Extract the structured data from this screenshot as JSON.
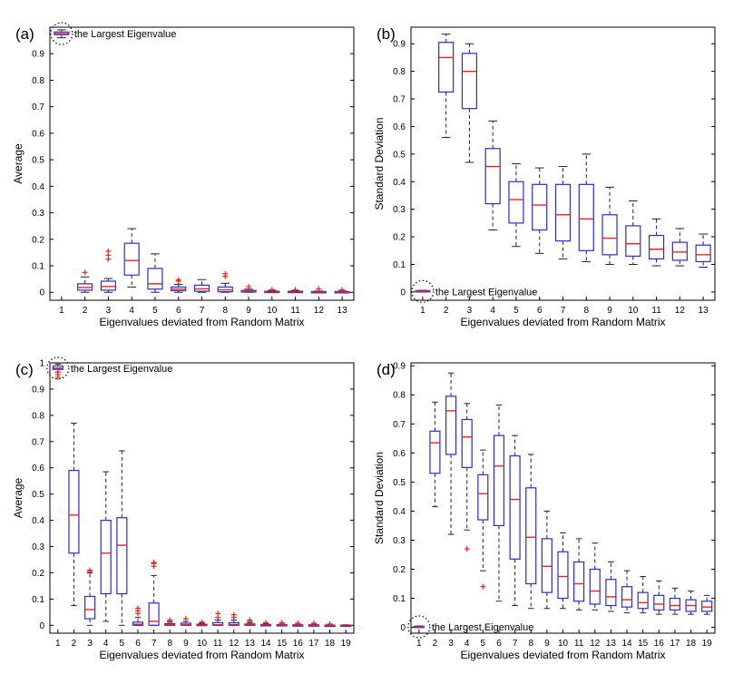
{
  "colors": {
    "box": "#2b2bd6",
    "median": "#e8231d",
    "outlier": "#e8231d",
    "whisker": "#222222",
    "axis": "#000000"
  },
  "chart_data": [
    {
      "panel": "(a)",
      "type": "box",
      "xlabel": "Eigenvalues deviated from Random Matrix",
      "ylabel": "Average",
      "ylim": [
        -0.03,
        1.0
      ],
      "yticks": [
        "0",
        "0.1",
        "0.2",
        "0.3",
        "0.4",
        "0.5",
        "0.6",
        "0.7",
        "0.8",
        "0.9"
      ],
      "annotation": "the Largest Eigenvalue",
      "categories": [
        "1",
        "2",
        "3",
        "4",
        "5",
        "6",
        "7",
        "8",
        "9",
        "10",
        "11",
        "12",
        "13"
      ],
      "boxes": [
        {
          "q1": 0.972,
          "median": 0.976,
          "q3": 0.982,
          "lo": 0.96,
          "hi": 0.99,
          "outliers": []
        },
        {
          "q1": 0.008,
          "median": 0.018,
          "q3": 0.032,
          "lo": 0.0,
          "hi": 0.058,
          "outliers": [
            0.075
          ]
        },
        {
          "q1": 0.008,
          "median": 0.022,
          "q3": 0.042,
          "lo": 0.0,
          "hi": 0.052,
          "outliers": [
            0.125,
            0.14,
            0.155
          ]
        },
        {
          "q1": 0.065,
          "median": 0.12,
          "q3": 0.185,
          "lo": 0.02,
          "hi": 0.24,
          "outliers": []
        },
        {
          "q1": 0.012,
          "median": 0.032,
          "q3": 0.09,
          "lo": 0.0,
          "hi": 0.145,
          "outliers": []
        },
        {
          "q1": 0.006,
          "median": 0.012,
          "q3": 0.02,
          "lo": 0.0,
          "hi": 0.03,
          "outliers": [
            0.042,
            0.047
          ]
        },
        {
          "q1": 0.004,
          "median": 0.013,
          "q3": 0.027,
          "lo": 0.0,
          "hi": 0.048,
          "outliers": []
        },
        {
          "q1": 0.002,
          "median": 0.009,
          "q3": 0.02,
          "lo": 0.0,
          "hi": 0.034,
          "outliers": [
            0.06,
            0.07
          ]
        },
        {
          "q1": 0.001,
          "median": 0.003,
          "q3": 0.007,
          "lo": 0.0,
          "hi": 0.012,
          "outliers": [
            0.021
          ]
        },
        {
          "q1": 0.0,
          "median": 0.002,
          "q3": 0.004,
          "lo": 0.0,
          "hi": 0.007,
          "outliers": [
            0.01
          ]
        },
        {
          "q1": 0.0,
          "median": 0.002,
          "q3": 0.004,
          "lo": 0.0,
          "hi": 0.006,
          "outliers": [
            0.01
          ]
        },
        {
          "q1": 0.0,
          "median": 0.001,
          "q3": 0.003,
          "lo": 0.0,
          "hi": 0.005,
          "outliers": [
            0.013
          ]
        },
        {
          "q1": 0.0,
          "median": 0.001,
          "q3": 0.003,
          "lo": 0.0,
          "hi": 0.005,
          "outliers": [
            0.009
          ]
        }
      ]
    },
    {
      "panel": "(b)",
      "type": "box",
      "xlabel": "Eigenvalues deviated from Random Matrix",
      "ylabel": "Standard Deviation",
      "ylim": [
        -0.03,
        0.96
      ],
      "yticks": [
        "0",
        "0.1",
        "0.2",
        "0.3",
        "0.4",
        "0.5",
        "0.6",
        "0.7",
        "0.8",
        "0.9"
      ],
      "annotation": "the Largest Eigenvalue",
      "categories": [
        "1",
        "2",
        "3",
        "4",
        "5",
        "6",
        "7",
        "8",
        "9",
        "10",
        "11",
        "12",
        "13"
      ],
      "boxes": [
        {
          "q1": 0.0,
          "median": 0.002,
          "q3": 0.005,
          "lo": 0.0,
          "hi": 0.006,
          "outliers": []
        },
        {
          "q1": 0.725,
          "median": 0.85,
          "q3": 0.905,
          "lo": 0.56,
          "hi": 0.935,
          "outliers": []
        },
        {
          "q1": 0.665,
          "median": 0.8,
          "q3": 0.865,
          "lo": 0.47,
          "hi": 0.9,
          "outliers": []
        },
        {
          "q1": 0.32,
          "median": 0.455,
          "q3": 0.52,
          "lo": 0.225,
          "hi": 0.62,
          "outliers": []
        },
        {
          "q1": 0.25,
          "median": 0.335,
          "q3": 0.4,
          "lo": 0.165,
          "hi": 0.465,
          "outliers": []
        },
        {
          "q1": 0.225,
          "median": 0.315,
          "q3": 0.39,
          "lo": 0.14,
          "hi": 0.45,
          "outliers": []
        },
        {
          "q1": 0.185,
          "median": 0.28,
          "q3": 0.39,
          "lo": 0.12,
          "hi": 0.455,
          "outliers": []
        },
        {
          "q1": 0.15,
          "median": 0.265,
          "q3": 0.39,
          "lo": 0.11,
          "hi": 0.5,
          "outliers": []
        },
        {
          "q1": 0.135,
          "median": 0.195,
          "q3": 0.28,
          "lo": 0.1,
          "hi": 0.38,
          "outliers": []
        },
        {
          "q1": 0.13,
          "median": 0.175,
          "q3": 0.24,
          "lo": 0.1,
          "hi": 0.33,
          "outliers": []
        },
        {
          "q1": 0.12,
          "median": 0.155,
          "q3": 0.205,
          "lo": 0.095,
          "hi": 0.265,
          "outliers": []
        },
        {
          "q1": 0.115,
          "median": 0.145,
          "q3": 0.18,
          "lo": 0.095,
          "hi": 0.23,
          "outliers": []
        },
        {
          "q1": 0.11,
          "median": 0.135,
          "q3": 0.17,
          "lo": 0.09,
          "hi": 0.21,
          "outliers": []
        }
      ]
    },
    {
      "panel": "(c)",
      "type": "box",
      "xlabel": "Eigenvalues deviated from Random Matrix",
      "ylabel": "Average",
      "ylim": [
        -0.03,
        1.0
      ],
      "yticks": [
        "0",
        "0.1",
        "0.2",
        "0.3",
        "0.4",
        "0.5",
        "0.6",
        "0.7",
        "0.8",
        "0.9",
        "1"
      ],
      "annotation": "the Largest Eigenvalue",
      "categories": [
        "1",
        "2",
        "3",
        "4",
        "5",
        "6",
        "7",
        "8",
        "9",
        "10",
        "11",
        "12",
        "13",
        "14",
        "15",
        "16",
        "17",
        "18",
        "19"
      ],
      "boxes": [
        {
          "q1": 0.975,
          "median": 0.98,
          "q3": 0.988,
          "lo": 0.965,
          "hi": 0.995,
          "outliers": [
            0.945,
            0.955,
            0.965
          ]
        },
        {
          "q1": 0.275,
          "median": 0.42,
          "q3": 0.59,
          "lo": 0.075,
          "hi": 0.77,
          "outliers": []
        },
        {
          "q1": 0.025,
          "median": 0.06,
          "q3": 0.11,
          "lo": 0.0,
          "hi": 0.2,
          "outliers": [
            0.205,
            0.21
          ]
        },
        {
          "q1": 0.12,
          "median": 0.275,
          "q3": 0.4,
          "lo": 0.015,
          "hi": 0.585,
          "outliers": []
        },
        {
          "q1": 0.12,
          "median": 0.305,
          "q3": 0.41,
          "lo": 0.0,
          "hi": 0.665,
          "outliers": []
        },
        {
          "q1": 0.0,
          "median": 0.004,
          "q3": 0.012,
          "lo": 0.0,
          "hi": 0.03,
          "outliers": [
            0.045,
            0.055,
            0.065
          ]
        },
        {
          "q1": 0.0,
          "median": 0.015,
          "q3": 0.085,
          "lo": 0.0,
          "hi": 0.19,
          "outliers": [
            0.225,
            0.235,
            0.24
          ]
        },
        {
          "q1": 0.0,
          "median": 0.002,
          "q3": 0.006,
          "lo": 0.0,
          "hi": 0.012,
          "outliers": [
            0.015,
            0.02
          ]
        },
        {
          "q1": 0.0,
          "median": 0.002,
          "q3": 0.008,
          "lo": 0.0,
          "hi": 0.015,
          "outliers": [
            0.025
          ]
        },
        {
          "q1": 0.0,
          "median": 0.001,
          "q3": 0.004,
          "lo": 0.0,
          "hi": 0.008,
          "outliers": [
            0.012
          ]
        },
        {
          "q1": 0.0,
          "median": 0.002,
          "q3": 0.01,
          "lo": 0.0,
          "hi": 0.02,
          "outliers": [
            0.03,
            0.045
          ]
        },
        {
          "q1": 0.0,
          "median": 0.003,
          "q3": 0.01,
          "lo": 0.0,
          "hi": 0.02,
          "outliers": [
            0.03,
            0.04
          ]
        },
        {
          "q1": 0.0,
          "median": 0.002,
          "q3": 0.005,
          "lo": 0.0,
          "hi": 0.01,
          "outliers": [
            0.015,
            0.02
          ]
        },
        {
          "q1": 0.0,
          "median": 0.001,
          "q3": 0.003,
          "lo": 0.0,
          "hi": 0.006,
          "outliers": [
            0.01
          ]
        },
        {
          "q1": 0.0,
          "median": 0.001,
          "q3": 0.003,
          "lo": 0.0,
          "hi": 0.005,
          "outliers": [
            0.01
          ]
        },
        {
          "q1": 0.0,
          "median": 0.001,
          "q3": 0.002,
          "lo": 0.0,
          "hi": 0.004,
          "outliers": [
            0.008
          ]
        },
        {
          "q1": 0.0,
          "median": 0.001,
          "q3": 0.002,
          "lo": 0.0,
          "hi": 0.004,
          "outliers": [
            0.008
          ]
        },
        {
          "q1": 0.0,
          "median": 0.0,
          "q3": 0.001,
          "lo": 0.0,
          "hi": 0.003,
          "outliers": [
            0.005
          ]
        },
        {
          "q1": 0.0,
          "median": 0.0,
          "q3": 0.001,
          "lo": 0.0,
          "hi": 0.002,
          "outliers": []
        }
      ]
    },
    {
      "panel": "(d)",
      "type": "box",
      "xlabel": "Eigenvalues deviated from Random Matrix",
      "ylabel": "Standard Deviation",
      "ylim": [
        -0.02,
        0.91
      ],
      "yticks": [
        "0",
        "0.1",
        "0.2",
        "0.3",
        "0.4",
        "0.5",
        "0.6",
        "0.7",
        "0.8",
        "0.9"
      ],
      "annotation": "the Largest Eigenvalue",
      "categories": [
        "1",
        "2",
        "3",
        "4",
        "5",
        "6",
        "7",
        "8",
        "9",
        "10",
        "11",
        "12",
        "13",
        "14",
        "15",
        "16",
        "17",
        "18",
        "19"
      ],
      "boxes": [
        {
          "q1": 0.0,
          "median": 0.002,
          "q3": 0.004,
          "lo": 0.0,
          "hi": 0.005,
          "outliers": []
        },
        {
          "q1": 0.53,
          "median": 0.635,
          "q3": 0.675,
          "lo": 0.415,
          "hi": 0.775,
          "outliers": []
        },
        {
          "q1": 0.595,
          "median": 0.745,
          "q3": 0.795,
          "lo": 0.32,
          "hi": 0.875,
          "outliers": []
        },
        {
          "q1": 0.55,
          "median": 0.655,
          "q3": 0.715,
          "lo": 0.335,
          "hi": 0.77,
          "outliers": [
            0.27
          ]
        },
        {
          "q1": 0.37,
          "median": 0.46,
          "q3": 0.525,
          "lo": 0.195,
          "hi": 0.61,
          "outliers": [
            0.14
          ]
        },
        {
          "q1": 0.35,
          "median": 0.555,
          "q3": 0.66,
          "lo": 0.09,
          "hi": 0.765,
          "outliers": []
        },
        {
          "q1": 0.235,
          "median": 0.44,
          "q3": 0.59,
          "lo": 0.075,
          "hi": 0.66,
          "outliers": []
        },
        {
          "q1": 0.15,
          "median": 0.31,
          "q3": 0.48,
          "lo": 0.065,
          "hi": 0.595,
          "outliers": []
        },
        {
          "q1": 0.12,
          "median": 0.21,
          "q3": 0.305,
          "lo": 0.065,
          "hi": 0.4,
          "outliers": []
        },
        {
          "q1": 0.1,
          "median": 0.175,
          "q3": 0.26,
          "lo": 0.065,
          "hi": 0.325,
          "outliers": []
        },
        {
          "q1": 0.09,
          "median": 0.15,
          "q3": 0.225,
          "lo": 0.06,
          "hi": 0.305,
          "outliers": []
        },
        {
          "q1": 0.08,
          "median": 0.125,
          "q3": 0.2,
          "lo": 0.06,
          "hi": 0.29,
          "outliers": []
        },
        {
          "q1": 0.075,
          "median": 0.105,
          "q3": 0.165,
          "lo": 0.055,
          "hi": 0.225,
          "outliers": []
        },
        {
          "q1": 0.07,
          "median": 0.095,
          "q3": 0.14,
          "lo": 0.05,
          "hi": 0.195,
          "outliers": []
        },
        {
          "q1": 0.065,
          "median": 0.085,
          "q3": 0.12,
          "lo": 0.05,
          "hi": 0.175,
          "outliers": []
        },
        {
          "q1": 0.06,
          "median": 0.08,
          "q3": 0.11,
          "lo": 0.045,
          "hi": 0.16,
          "outliers": []
        },
        {
          "q1": 0.06,
          "median": 0.075,
          "q3": 0.1,
          "lo": 0.045,
          "hi": 0.135,
          "outliers": []
        },
        {
          "q1": 0.055,
          "median": 0.075,
          "q3": 0.095,
          "lo": 0.045,
          "hi": 0.125,
          "outliers": []
        },
        {
          "q1": 0.055,
          "median": 0.07,
          "q3": 0.09,
          "lo": 0.045,
          "hi": 0.11,
          "outliers": []
        }
      ]
    }
  ]
}
